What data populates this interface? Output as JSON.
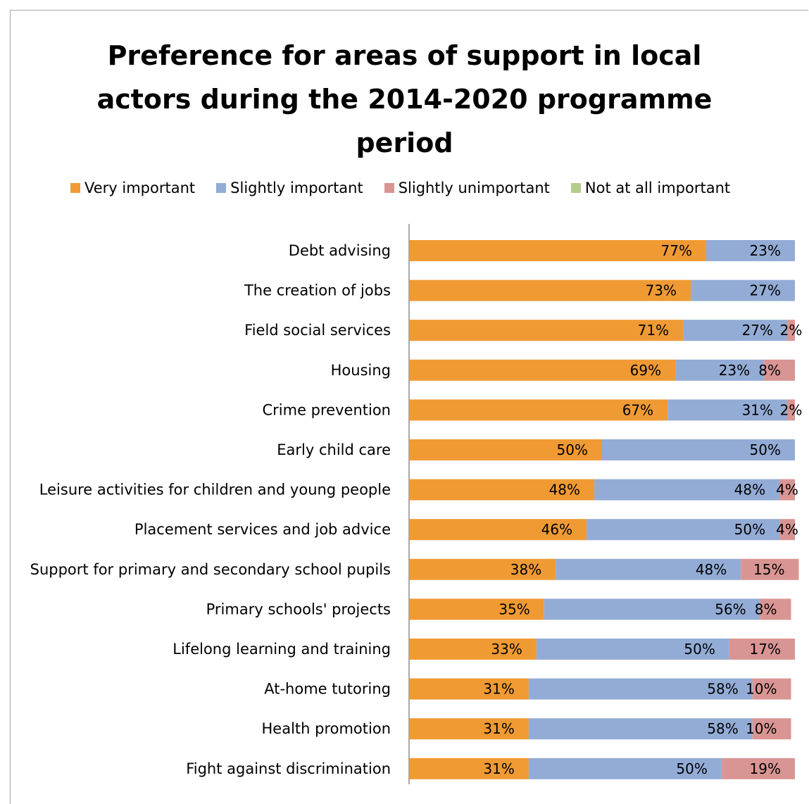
{
  "chart_data": {
    "type": "bar",
    "orientation": "horizontal",
    "stacked": true,
    "title_lines": [
      "Preference for areas of support in local",
      "actors during the 2014-2020 programme",
      "period"
    ],
    "legend_placement": "top",
    "categories": [
      "Debt advising",
      "The creation of jobs",
      "Field social services",
      "Housing",
      "Crime prevention",
      "Early child care",
      "Leisure activities for children and young people",
      "Placement services and job advice",
      "Support for primary and secondary school pupils",
      "Primary schools' projects",
      "Lifelong learning and training",
      "At-home tutoring",
      "Health promotion",
      "Fight against discrimination"
    ],
    "series": [
      {
        "name": "Very important",
        "color": "#f09a34",
        "values": [
          77,
          73,
          71,
          69,
          67,
          50,
          48,
          46,
          38,
          35,
          33,
          31,
          31,
          31
        ]
      },
      {
        "name": "Slightly important",
        "color": "#93acd6",
        "values": [
          23,
          27,
          27,
          23,
          31,
          50,
          48,
          50,
          48,
          56,
          50,
          58,
          58,
          50
        ]
      },
      {
        "name": "Slightly unimportant",
        "color": "#d99593",
        "values": [
          0,
          0,
          2,
          8,
          2,
          0,
          4,
          4,
          15,
          8,
          17,
          10,
          10,
          19
        ]
      },
      {
        "name": "Not at all important",
        "color": "#b5cc8e",
        "values": [
          0,
          0,
          0,
          0,
          0,
          0,
          0,
          0,
          0,
          0,
          0,
          0,
          0,
          0
        ]
      }
    ],
    "value_format": "{v}%",
    "xlim": [
      0,
      100
    ],
    "grid": false
  }
}
